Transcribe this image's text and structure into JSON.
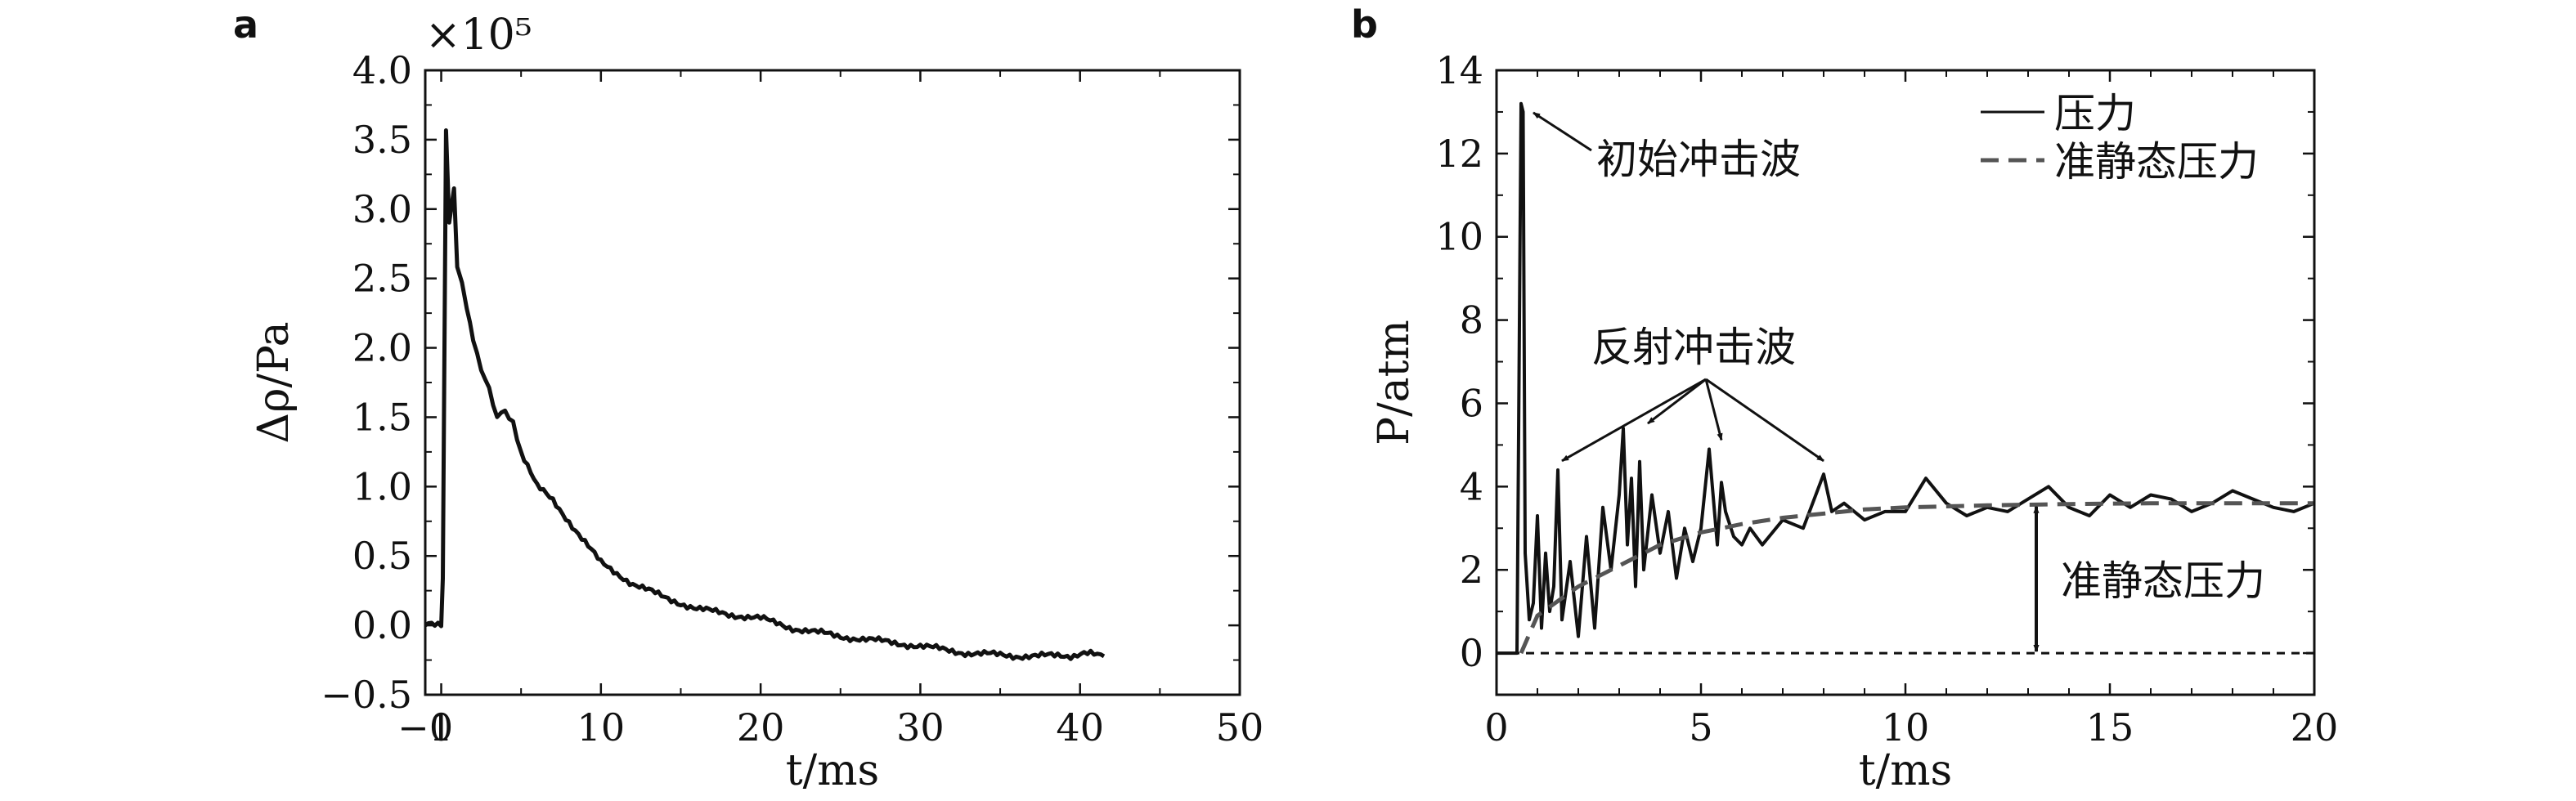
{
  "chart_data": [
    {
      "type": "line",
      "panel_label": "a",
      "title": "",
      "xlabel": "t/ms",
      "ylabel": "Δρ/Pa",
      "y_multiplier": "×10⁵",
      "xlim": [
        -1,
        50
      ],
      "ylim": [
        -0.5,
        4.0
      ],
      "xticks": [
        -1,
        0,
        10,
        20,
        30,
        40,
        50
      ],
      "yticks": [
        -0.5,
        0.0,
        0.5,
        1.0,
        1.5,
        2.0,
        2.5,
        3.0,
        3.5,
        4.0
      ],
      "ytick_labels": [
        "−0.5",
        "0.0",
        "0.5",
        "1.0",
        "1.5",
        "2.0",
        "2.5",
        "3.0",
        "3.5",
        "4.0"
      ],
      "xtick_labels": [
        "−1",
        "0",
        "10",
        "20",
        "30",
        "40",
        "50"
      ],
      "grid": false,
      "series": [
        {
          "x": [
            -1,
            0.0,
            0.1,
            0.3,
            0.5,
            0.8,
            1.0,
            1.3,
            1.6,
            2.0,
            2.5,
            3.0,
            3.5,
            4.0,
            4.5,
            5.0,
            6.0,
            7.0,
            8.0,
            9.0,
            10.0,
            12.0,
            14.0,
            16.0,
            18.0,
            20.0,
            22.0,
            25.0,
            28.0,
            30.0,
            33.0,
            36.0,
            39.0,
            41.5
          ],
          "y": [
            0.0,
            0.0,
            0.35,
            3.55,
            2.9,
            3.15,
            2.6,
            2.45,
            2.3,
            2.05,
            1.85,
            1.7,
            1.5,
            1.55,
            1.45,
            1.25,
            1.0,
            0.9,
            0.75,
            0.6,
            0.45,
            0.3,
            0.2,
            0.12,
            0.08,
            0.05,
            -0.02,
            -0.08,
            -0.12,
            -0.15,
            -0.2,
            -0.22,
            -0.22,
            -0.2
          ]
        }
      ]
    },
    {
      "type": "line",
      "panel_label": "b",
      "title": "",
      "xlabel": "t/ms",
      "ylabel": "P/atm",
      "xlim": [
        0,
        20
      ],
      "ylim": [
        -1,
        14
      ],
      "xticks": [
        0,
        5,
        10,
        15,
        20
      ],
      "yticks": [
        0,
        2,
        4,
        6,
        8,
        10,
        12,
        14
      ],
      "grid": false,
      "legend_position": "top-right",
      "series": [
        {
          "name": "压力",
          "style": "solid",
          "x": [
            0.0,
            0.5,
            0.6,
            0.65,
            0.7,
            0.8,
            0.9,
            1.0,
            1.1,
            1.2,
            1.3,
            1.4,
            1.5,
            1.6,
            1.8,
            2.0,
            2.2,
            2.4,
            2.6,
            2.8,
            3.0,
            3.1,
            3.2,
            3.3,
            3.4,
            3.5,
            3.6,
            3.8,
            4.0,
            4.2,
            4.4,
            4.6,
            4.8,
            5.0,
            5.2,
            5.4,
            5.5,
            5.6,
            5.8,
            6.0,
            6.2,
            6.5,
            7.0,
            7.5,
            8.0,
            8.2,
            8.5,
            9.0,
            9.5,
            10.0,
            10.5,
            11.0,
            11.5,
            12.0,
            12.5,
            13.0,
            13.5,
            14.0,
            14.5,
            15.0,
            15.5,
            16.0,
            16.5,
            17.0,
            17.5,
            18.0,
            18.5,
            19.0,
            19.5,
            20.0
          ],
          "y": [
            0.0,
            0.0,
            13.2,
            13.0,
            2.4,
            0.8,
            1.2,
            3.3,
            0.6,
            2.4,
            1.0,
            1.6,
            4.4,
            0.8,
            2.2,
            0.4,
            2.8,
            0.6,
            3.5,
            2.0,
            3.8,
            5.4,
            2.6,
            4.2,
            1.6,
            4.6,
            2.0,
            3.8,
            2.4,
            3.4,
            1.8,
            3.0,
            2.2,
            3.0,
            4.9,
            2.6,
            4.1,
            3.4,
            2.8,
            2.6,
            3.0,
            2.6,
            3.2,
            3.0,
            4.3,
            3.4,
            3.6,
            3.2,
            3.4,
            3.4,
            4.2,
            3.6,
            3.3,
            3.5,
            3.4,
            3.7,
            4.0,
            3.5,
            3.3,
            3.8,
            3.5,
            3.8,
            3.7,
            3.4,
            3.6,
            3.9,
            3.7,
            3.5,
            3.4,
            3.6
          ]
        },
        {
          "name": "准静态压力",
          "style": "dashed",
          "x": [
            0.6,
            1.0,
            2.0,
            3.0,
            4.0,
            5.0,
            6.0,
            7.0,
            8.0,
            9.0,
            10.0,
            12.0,
            14.0,
            16.0,
            18.0,
            20.0
          ],
          "y": [
            0.0,
            0.9,
            1.6,
            2.1,
            2.6,
            2.9,
            3.1,
            3.25,
            3.35,
            3.45,
            3.5,
            3.55,
            3.58,
            3.6,
            3.6,
            3.6
          ]
        },
        {
          "name": "",
          "style": "baseline",
          "x": [
            0,
            20
          ],
          "y": [
            0,
            0
          ]
        }
      ],
      "annotations": [
        {
          "text": "初始冲击波",
          "target": {
            "x": 0.7,
            "y": 13.1
          }
        },
        {
          "text": "反射冲击波",
          "targets": [
            {
              "x": 1.6,
              "y": 4.5
            },
            {
              "x": 3.7,
              "y": 5.4
            },
            {
              "x": 5.5,
              "y": 5.0
            },
            {
              "x": 8.0,
              "y": 4.5
            }
          ]
        },
        {
          "text": "准静态压力",
          "arrow": {
            "x": 13.2,
            "y0": 0.0,
            "y1": 3.6
          }
        }
      ]
    }
  ]
}
